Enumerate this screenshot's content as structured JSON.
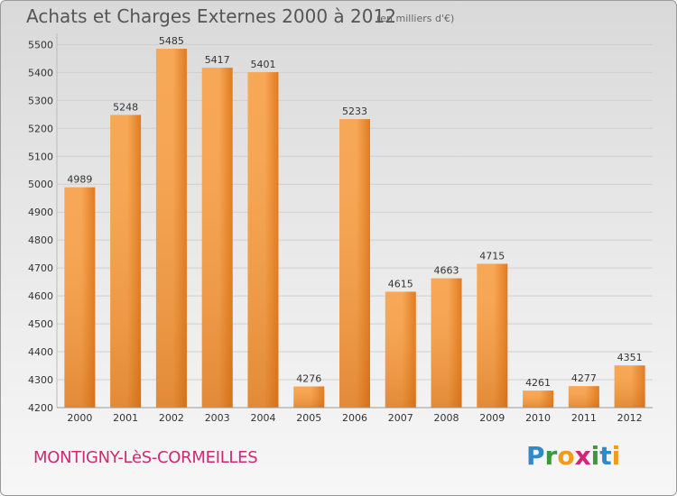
{
  "title": "Achats et Charges Externes 2000 à 2012",
  "subtitle": "(en milliers d'€)",
  "city": "MONTIGNY-LèS-CORMEILLES",
  "logo": {
    "letters": [
      "P",
      "r",
      "o",
      "x",
      "i",
      "t",
      "i"
    ],
    "colors": [
      "#2e8ac8",
      "#3a9a3a",
      "#f29b1a",
      "#d4237a",
      "#3a9a3a",
      "#2e8ac8",
      "#f29b1a"
    ]
  },
  "colors": {
    "bar_light": "#f7a857",
    "bar_dark": "#e07a1f",
    "grid": "#cfcfcf",
    "axis_text": "#333333"
  },
  "chart_data": {
    "type": "bar",
    "categories": [
      "2000",
      "2001",
      "2002",
      "2003",
      "2004",
      "2005",
      "2006",
      "2007",
      "2008",
      "2009",
      "2010",
      "2011",
      "2012"
    ],
    "values": [
      4989,
      5248,
      5485,
      5417,
      5401,
      4276,
      5233,
      4615,
      4663,
      4715,
      4261,
      4277,
      4351
    ],
    "yticks": [
      4200,
      4300,
      4400,
      4500,
      4600,
      4700,
      4800,
      4900,
      5000,
      5100,
      5200,
      5300,
      5400,
      5500
    ],
    "ylim": [
      4200,
      5540
    ],
    "grid": true
  }
}
